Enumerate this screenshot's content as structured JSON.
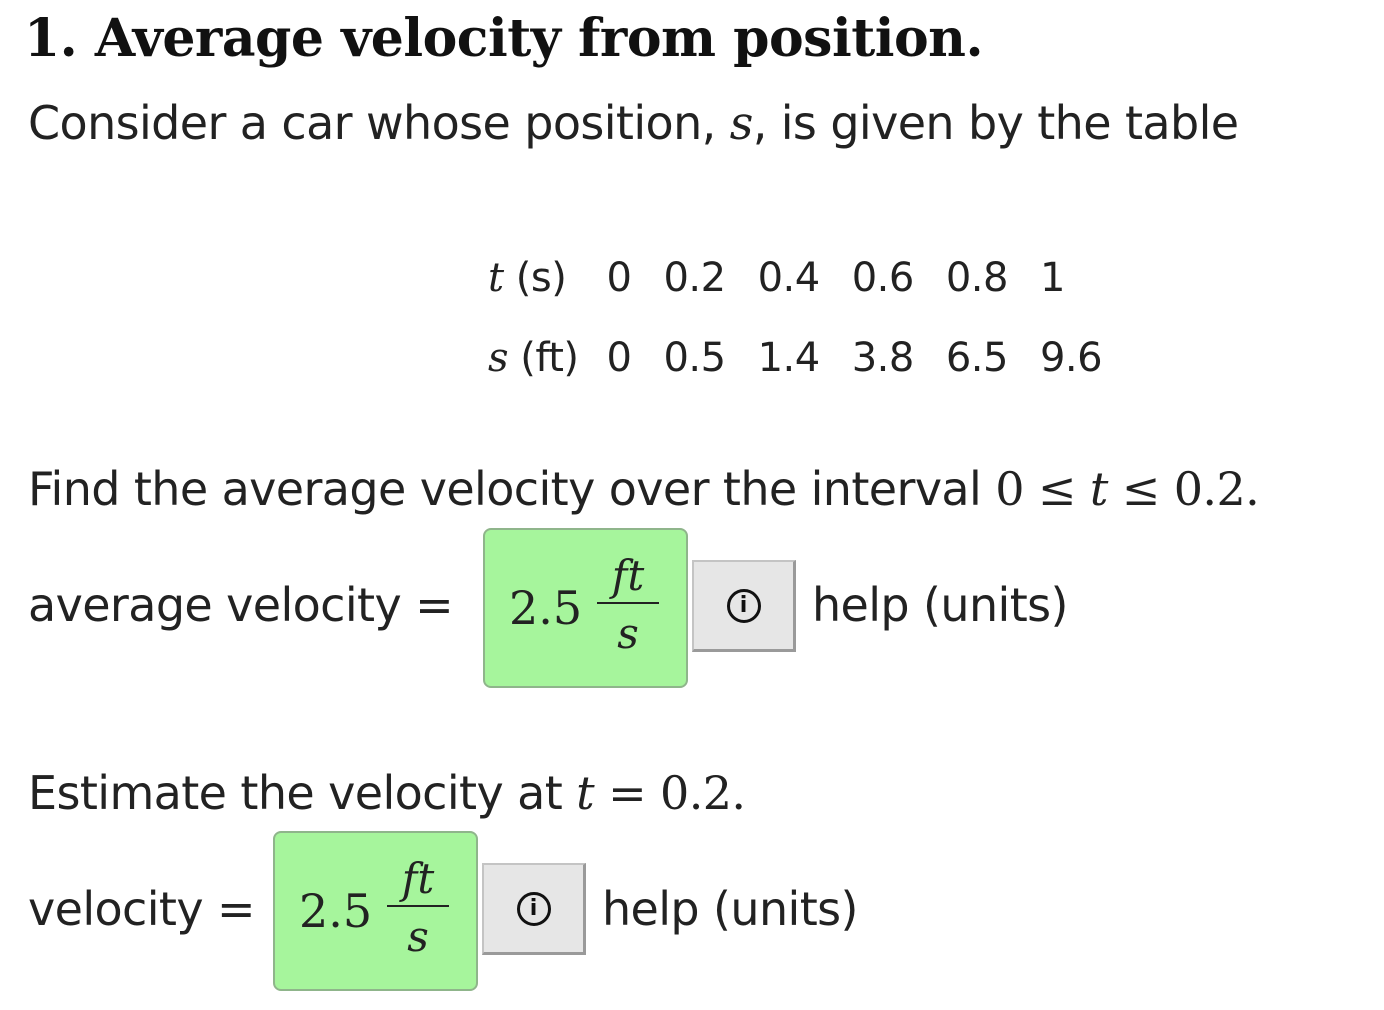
{
  "problem": {
    "title": "1. Average velocity from position.",
    "intro": {
      "before": "Consider a car whose position, ",
      "var": "s",
      "after": ", is given by the table"
    }
  },
  "table": {
    "t_var": "t",
    "t_unit": " (s)",
    "s_var": "s",
    "s_unit": " (ft)",
    "t_values": [
      "0",
      "0.2",
      "0.4",
      "0.6",
      "0.8",
      "1"
    ],
    "s_values": [
      "0",
      "0.5",
      "1.4",
      "3.8",
      "6.5",
      "9.6"
    ]
  },
  "part1": {
    "question": "Find the average velocity over the interval ",
    "math_a": "0 ≤ ",
    "math_t": "t",
    "math_b": " ≤ 0.2.",
    "label": "average velocity =",
    "answer_value": "2.5",
    "answer_unit_num": "ft",
    "answer_unit_den": "s",
    "help_text": "help (units)"
  },
  "part2": {
    "question": "Estimate the velocity at ",
    "math_t": "t",
    "math_b": " = 0.2.",
    "label": "velocity =",
    "answer_value": "2.5",
    "answer_unit_num": "ft",
    "answer_unit_den": "s",
    "help_text": "help (units)"
  },
  "icons": {
    "help": "info-icon",
    "info_glyph": "i"
  },
  "colors": {
    "answer_correct_bg": "#a6f59c",
    "answer_border": "#8fb58b",
    "help_button_bg": "#e6e6e6"
  }
}
